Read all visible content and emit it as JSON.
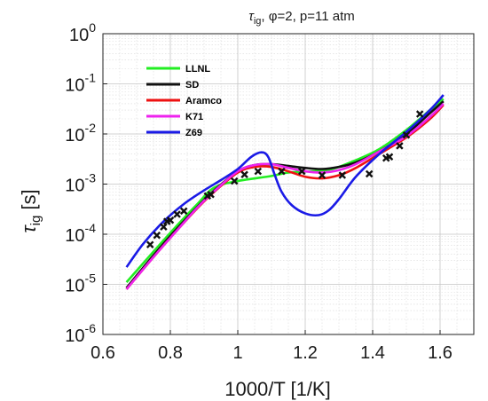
{
  "chart_data": {
    "type": "line",
    "title": {
      "base": "τ",
      "sub": "ig",
      "rest": ", φ=2, p=11 atm"
    },
    "xlabel": "1000/T [1/K]",
    "ylabel": {
      "base": "τ",
      "sub": "ig",
      "rest": " [s]"
    },
    "xlim": [
      0.6,
      1.7
    ],
    "ylim_log10": [
      -6,
      0
    ],
    "yscale": "log",
    "grid": true,
    "minor_grid": true,
    "legend_placement": "top-left",
    "x_ticks": [
      "0.6",
      "0.8",
      "1",
      "1.2",
      "1.4",
      "1.6"
    ],
    "x_tick_values": [
      0.6,
      0.8,
      1.0,
      1.2,
      1.4,
      1.6
    ],
    "y_ticks": [
      {
        "base": "10",
        "exp": "0"
      },
      {
        "base": "10",
        "exp": "-1"
      },
      {
        "base": "10",
        "exp": "-2"
      },
      {
        "base": "10",
        "exp": "-3"
      },
      {
        "base": "10",
        "exp": "-4"
      },
      {
        "base": "10",
        "exp": "-5"
      },
      {
        "base": "10",
        "exp": "-6"
      }
    ],
    "y_tick_values": [
      1,
      0.1,
      0.01,
      0.001,
      0.0001,
      1e-05,
      1e-06
    ],
    "series": [
      {
        "name": "LLNL",
        "color": "#22ee22",
        "x": [
          0.67,
          0.75,
          0.82,
          0.88,
          0.93,
          1.0,
          1.1,
          1.15,
          1.22,
          1.28,
          1.35,
          1.42,
          1.5,
          1.57,
          1.61
        ],
        "y": [
          1.1e-05,
          4.5e-05,
          0.00015,
          0.0004,
          0.00085,
          0.00115,
          0.00145,
          0.0017,
          0.0018,
          0.002,
          0.003,
          0.005,
          0.012,
          0.03,
          0.05
        ]
      },
      {
        "name": "SD",
        "color": "#111111",
        "x": [
          0.67,
          0.75,
          0.82,
          0.88,
          0.93,
          1.0,
          1.05,
          1.1,
          1.15,
          1.2,
          1.25,
          1.3,
          1.35,
          1.42,
          1.5,
          1.57,
          1.61
        ],
        "y": [
          8.5e-06,
          3.8e-05,
          0.00013,
          0.00035,
          0.00075,
          0.0018,
          0.0024,
          0.0025,
          0.0023,
          0.0021,
          0.002,
          0.0022,
          0.0027,
          0.0045,
          0.01,
          0.026,
          0.045
        ]
      },
      {
        "name": "Aramco",
        "color": "#ee1111",
        "x": [
          0.67,
          0.75,
          0.82,
          0.88,
          0.93,
          1.0,
          1.05,
          1.1,
          1.15,
          1.2,
          1.25,
          1.3,
          1.35,
          1.42,
          1.5,
          1.57,
          1.61
        ],
        "y": [
          8e-06,
          3.5e-05,
          0.00012,
          0.00033,
          0.0007,
          0.0017,
          0.0022,
          0.0022,
          0.0018,
          0.0014,
          0.0013,
          0.0015,
          0.0021,
          0.004,
          0.0085,
          0.02,
          0.038
        ]
      },
      {
        "name": "K71",
        "color": "#ee22ee",
        "x": [
          0.67,
          0.75,
          0.82,
          0.88,
          0.93,
          1.0,
          1.05,
          1.1,
          1.15,
          1.2,
          1.25,
          1.3,
          1.35,
          1.42,
          1.5,
          1.57,
          1.61
        ],
        "y": [
          8e-06,
          3.5e-05,
          0.00012,
          0.00034,
          0.00072,
          0.0018,
          0.0024,
          0.0025,
          0.0021,
          0.0018,
          0.0017,
          0.0019,
          0.0025,
          0.0045,
          0.009,
          0.022,
          0.04
        ]
      },
      {
        "name": "Z69",
        "color": "#1a1ae6",
        "x": [
          0.67,
          0.72,
          0.78,
          0.84,
          0.9,
          0.95,
          1.0,
          1.04,
          1.07,
          1.09,
          1.11,
          1.13,
          1.16,
          1.2,
          1.24,
          1.27,
          1.3,
          1.35,
          1.42,
          1.5,
          1.57,
          1.61
        ],
        "y": [
          2.2e-05,
          6.5e-05,
          0.00018,
          0.0004,
          0.00075,
          0.0012,
          0.002,
          0.0035,
          0.0043,
          0.0035,
          0.0015,
          0.0007,
          0.00038,
          0.00026,
          0.00024,
          0.0003,
          0.0005,
          0.0014,
          0.004,
          0.011,
          0.03,
          0.06
        ]
      },
      {
        "name": "",
        "type": "scatter",
        "marker": "x",
        "color": "#111111",
        "x": [
          0.74,
          0.76,
          0.78,
          0.79,
          0.8,
          0.82,
          0.84,
          0.91,
          0.92,
          0.99,
          1.02,
          1.06,
          1.13,
          1.19,
          1.25,
          1.31,
          1.39,
          1.44,
          1.45,
          1.48,
          1.5,
          1.54
        ],
        "y": [
          6.2e-05,
          9.5e-05,
          0.00014,
          0.00018,
          0.00019,
          0.00025,
          0.00029,
          0.00058,
          0.00062,
          0.00115,
          0.00155,
          0.0018,
          0.0018,
          0.0018,
          0.0015,
          0.0015,
          0.0016,
          0.0033,
          0.0035,
          0.0058,
          0.0095,
          0.025
        ]
      }
    ]
  }
}
